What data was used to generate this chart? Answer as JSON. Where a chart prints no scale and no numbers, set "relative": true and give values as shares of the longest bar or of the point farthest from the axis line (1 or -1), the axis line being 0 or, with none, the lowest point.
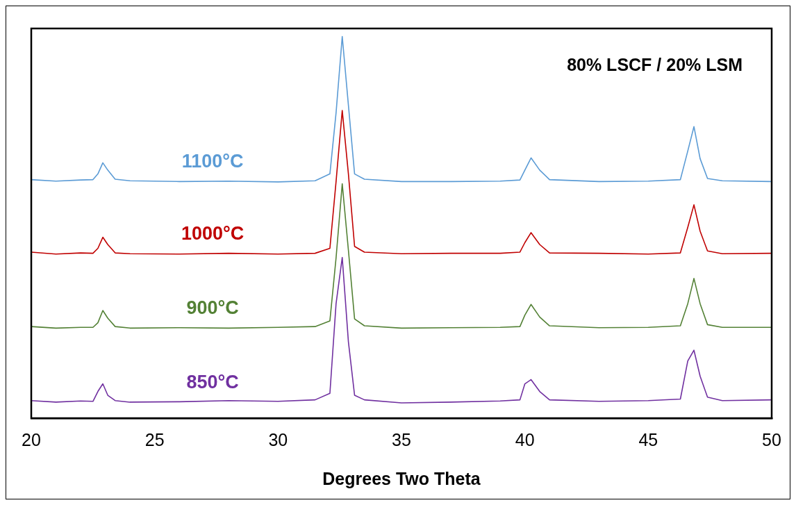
{
  "chart_data": {
    "type": "line",
    "relative": true,
    "xlabel": "Degrees Two Theta",
    "annotations": [
      "80% LSCF / 20% LSM"
    ],
    "x": [
      20,
      21,
      22,
      22.5,
      22.7,
      22.9,
      23.1,
      23.4,
      24,
      26,
      28,
      30,
      31.5,
      32.1,
      32.35,
      32.6,
      32.85,
      33.1,
      33.5,
      35,
      37,
      39,
      39.8,
      40.0,
      40.25,
      40.6,
      41,
      43,
      45,
      46.3,
      46.6,
      46.85,
      47.1,
      47.4,
      48,
      50
    ],
    "xlim": [
      20,
      50
    ],
    "xticks": [
      20,
      25,
      30,
      35,
      40,
      45,
      50
    ],
    "marker": "none",
    "line_style": "solid",
    "legend": false,
    "series": [
      {
        "name": "1100°C",
        "color": "#5b9bd5",
        "values": [
          0.625,
          0.621,
          0.624,
          0.625,
          0.64,
          0.669,
          0.65,
          0.626,
          0.622,
          0.62,
          0.621,
          0.619,
          0.622,
          0.64,
          0.8,
          1.0,
          0.82,
          0.64,
          0.626,
          0.62,
          0.62,
          0.621,
          0.624,
          0.65,
          0.682,
          0.65,
          0.625,
          0.62,
          0.621,
          0.625,
          0.7,
          0.764,
          0.68,
          0.628,
          0.622,
          0.62
        ]
      },
      {
        "name": "1000°C",
        "color": "#c00000",
        "values": [
          0.435,
          0.43,
          0.433,
          0.432,
          0.445,
          0.474,
          0.455,
          0.433,
          0.431,
          0.43,
          0.432,
          0.43,
          0.432,
          0.445,
          0.62,
          0.806,
          0.64,
          0.45,
          0.435,
          0.431,
          0.432,
          0.432,
          0.435,
          0.46,
          0.486,
          0.455,
          0.433,
          0.432,
          0.43,
          0.433,
          0.5,
          0.559,
          0.49,
          0.438,
          0.431,
          0.432
        ]
      },
      {
        "name": "900°C",
        "color": "#538135",
        "values": [
          0.24,
          0.236,
          0.238,
          0.238,
          0.25,
          0.282,
          0.262,
          0.24,
          0.236,
          0.237,
          0.236,
          0.238,
          0.24,
          0.255,
          0.42,
          0.614,
          0.44,
          0.26,
          0.242,
          0.236,
          0.237,
          0.238,
          0.24,
          0.27,
          0.298,
          0.265,
          0.242,
          0.237,
          0.238,
          0.242,
          0.3,
          0.366,
          0.3,
          0.245,
          0.238,
          0.238
        ]
      },
      {
        "name": "850°C",
        "color": "#7030a0",
        "values": [
          0.046,
          0.042,
          0.045,
          0.044,
          0.07,
          0.09,
          0.06,
          0.046,
          0.042,
          0.043,
          0.046,
          0.044,
          0.048,
          0.065,
          0.3,
          0.421,
          0.2,
          0.06,
          0.048,
          0.04,
          0.042,
          0.045,
          0.048,
          0.09,
          0.101,
          0.07,
          0.048,
          0.044,
          0.046,
          0.05,
          0.15,
          0.178,
          0.11,
          0.055,
          0.046,
          0.048
        ]
      }
    ]
  }
}
